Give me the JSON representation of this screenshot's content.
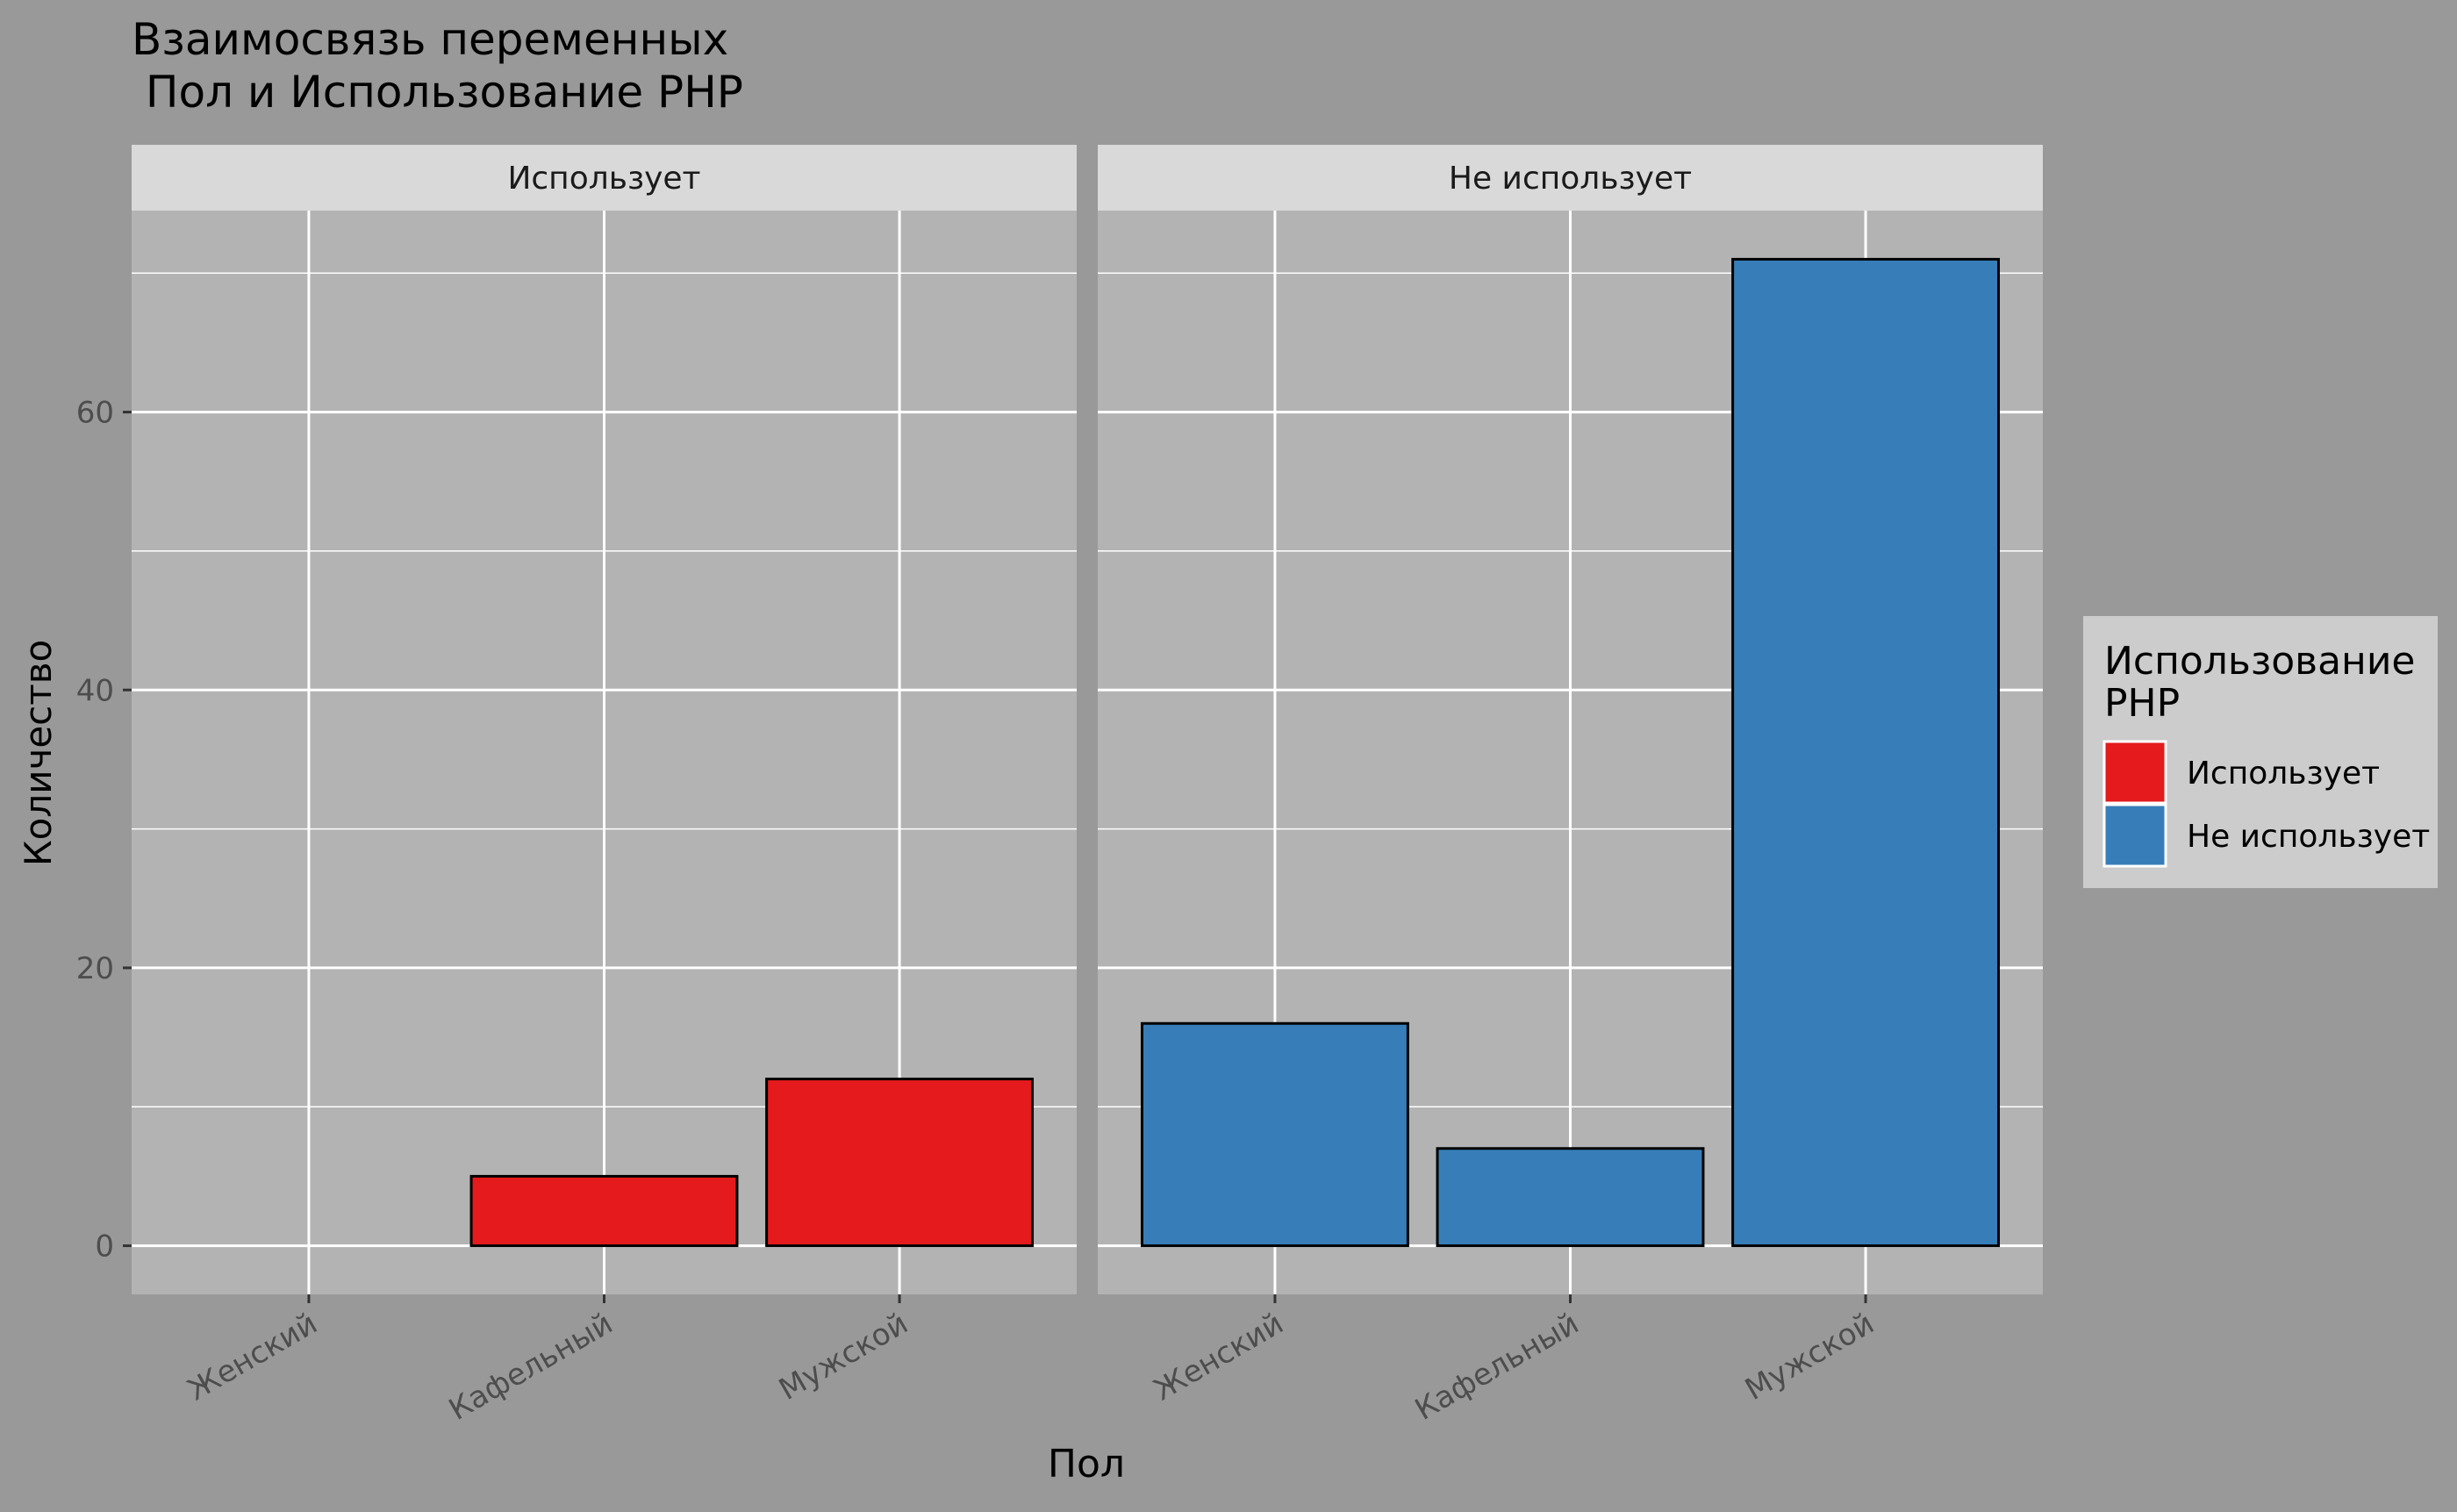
{
  "chart_data": {
    "type": "bar",
    "title": "Взаимосвязь переменных\n Пол и Использование PHP",
    "xlabel": "Пол",
    "ylabel": "Количество",
    "categories": [
      "Женский",
      "Кафельный",
      "Мужской"
    ],
    "ylim": [
      -3.5,
      74.5
    ],
    "yticks": [
      0,
      20,
      40,
      60
    ],
    "grid": true,
    "legend": {
      "title": "Использование\nPHP",
      "position": "right",
      "items": [
        {
          "label": "Использует",
          "color": "#E41A1C"
        },
        {
          "label": "Не использует",
          "color": "#377EB8"
        }
      ]
    },
    "facets": [
      {
        "label": "Использует",
        "color": "#E41A1C",
        "values": [
          0,
          5,
          12
        ]
      },
      {
        "label": "Не использует",
        "color": "#377EB8",
        "values": [
          16,
          7,
          71
        ]
      }
    ]
  },
  "colors": {
    "plot_background": "#999999",
    "panel_background": "#B3B3B3",
    "strip_background": "#D9D9D9",
    "legend_background": "#CCCCCC",
    "grid": "#FFFFFF"
  }
}
